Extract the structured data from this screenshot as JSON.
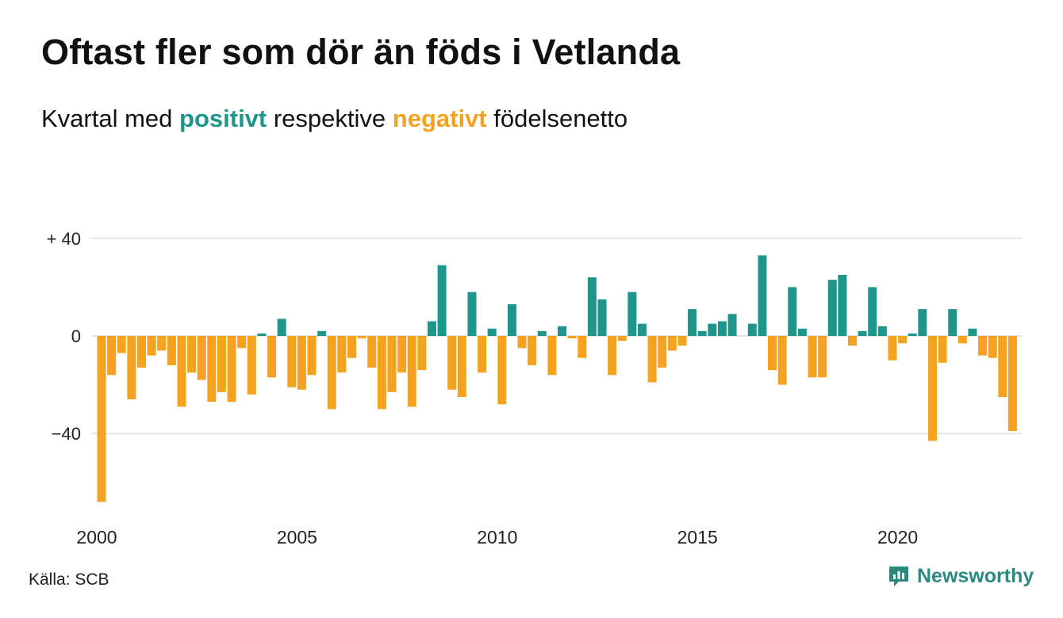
{
  "title": "Oftast fler som dör än föds i Vetlanda",
  "subtitle": {
    "prefix": "Kvartal med ",
    "positive_word": "positivt",
    "middle": " respektive ",
    "negative_word": "negativt",
    "suffix": " födelsenetto"
  },
  "source": "Källa: SCB",
  "brand": {
    "name": "Newsworthy",
    "icon": "newsworthy-logo-icon"
  },
  "colors": {
    "positive": "#1f968b",
    "negative": "#f4a21f",
    "grid": "#e3e3e3"
  },
  "chart_data": {
    "type": "bar",
    "y_tick_labels": [
      "+ 40",
      "0",
      "−40"
    ],
    "y_ticks": [
      40,
      0,
      -40
    ],
    "ylim": [
      -70,
      42
    ],
    "x_tick_labels": [
      "2000",
      "2005",
      "2010",
      "2015",
      "2020"
    ],
    "x_ticks": [
      2000,
      2005,
      2010,
      2015,
      2020
    ],
    "first_quarter": "2000 Q1",
    "grid": true,
    "values": [
      -68,
      -16,
      -7,
      -26,
      -13,
      -8,
      -6,
      -12,
      -29,
      -15,
      -18,
      -27,
      -23,
      -27,
      -5,
      -24,
      1,
      -17,
      7,
      -21,
      -22,
      -16,
      2,
      -30,
      -15,
      -9,
      -1,
      -13,
      -30,
      -23,
      -15,
      -29,
      -14,
      6,
      29,
      -22,
      -25,
      18,
      -15,
      3,
      -28,
      13,
      -5,
      -12,
      2,
      -16,
      4,
      -1,
      -9,
      24,
      15,
      -16,
      -2,
      18,
      5,
      -19,
      -13,
      -6,
      -4,
      11,
      2,
      5,
      6,
      9,
      0,
      5,
      33,
      -14,
      -20,
      20,
      3,
      -17,
      -17,
      23,
      25,
      -4,
      2,
      20,
      4,
      -10,
      -3,
      1,
      11,
      -43,
      -11,
      11,
      -3,
      3,
      -8,
      -9,
      -25,
      -39
    ]
  }
}
